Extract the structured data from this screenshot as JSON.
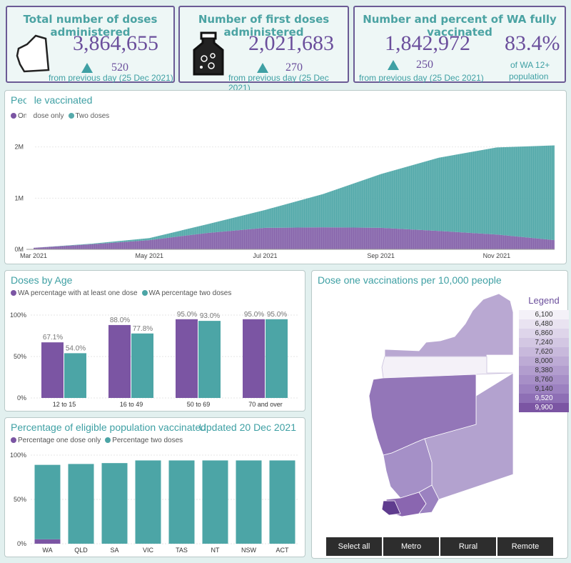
{
  "kpis": [
    {
      "title": "Total number of doses administered",
      "value": "3,864,655",
      "delta": "520",
      "note": "from previous day (25 Dec 2021)",
      "icon": "wa-map-icon"
    },
    {
      "title": "Number of first doses administered",
      "value": "2,021,683",
      "delta": "270",
      "note": "from previous day (25 Dec 2021)",
      "icon": "vaccine-vial-icon"
    },
    {
      "title": "Number and percent of WA fully vaccinated",
      "value": "1,842,972",
      "percent": "83.4%",
      "percent_note_1": "of WA 12+",
      "percent_note_2": "population",
      "delta": "250",
      "note": "from previous day (25 Dec 2021)"
    }
  ],
  "people_vaccinated": {
    "title": "People vaccinated",
    "legend": [
      "One dose only",
      "Two doses"
    ],
    "yticks": [
      "0M",
      "1M",
      "2M"
    ],
    "xticks": [
      "Mar 2021",
      "May 2021",
      "Jul 2021",
      "Sep 2021",
      "Nov 2021"
    ]
  },
  "doses_by_age": {
    "title": "Doses by Age",
    "legend": [
      "WA percentage with at least one dose",
      "WA percentage two doses"
    ],
    "yticks": [
      "0%",
      "50%",
      "100%"
    ]
  },
  "eligible": {
    "title": "Percentage of eligible population vaccinated",
    "updated": "Updated 20 Dec 2021",
    "legend": [
      "Percentage one dose only",
      "Percentage two doses"
    ],
    "yticks": [
      "0%",
      "50%",
      "100%"
    ]
  },
  "map": {
    "title": "Dose one vaccinations per 10,000 people",
    "legend_title": "Legend",
    "legend_values": [
      "6,100",
      "6,480",
      "6,860",
      "7,240",
      "7,620",
      "8,000",
      "8,380",
      "8,760",
      "9,140",
      "9,520",
      "9,900"
    ],
    "buttons": [
      "Select all",
      "Metro",
      "Rural",
      "Remote"
    ]
  },
  "colors": {
    "purple": "#7b55a3",
    "teal": "#4ca5a6",
    "accent_text": "#3fa0a4",
    "border": "#6b5b95"
  },
  "chart_data": [
    {
      "type": "area",
      "title": "People vaccinated",
      "x": [
        "Mar 2021",
        "Apr 2021",
        "May 2021",
        "Jun 2021",
        "Jul 2021",
        "Aug 2021",
        "Sep 2021",
        "Oct 2021",
        "Nov 2021",
        "Dec 2021"
      ],
      "series": [
        {
          "name": "One dose only",
          "values": [
            30000,
            100000,
            180000,
            320000,
            420000,
            430000,
            420000,
            360000,
            290000,
            180000
          ]
        },
        {
          "name": "Two doses",
          "values": [
            0,
            10000,
            40000,
            170000,
            350000,
            650000,
            1050000,
            1430000,
            1700000,
            1850000
          ]
        }
      ],
      "ylim": [
        0,
        2400000
      ]
    },
    {
      "type": "bar",
      "title": "Doses by Age",
      "categories": [
        "12 to 15",
        "16 to 49",
        "50 to 69",
        "70 and over"
      ],
      "series": [
        {
          "name": "WA percentage with at least one dose",
          "values": [
            67.1,
            88.0,
            95.0,
            95.0
          ]
        },
        {
          "name": "WA percentage two doses",
          "values": [
            54.0,
            77.8,
            93.0,
            95.0
          ]
        }
      ],
      "ylim": [
        0,
        100
      ]
    },
    {
      "type": "bar",
      "title": "Percentage of eligible population vaccinated",
      "categories": [
        "WA",
        "QLD",
        "SA",
        "VIC",
        "TAS",
        "NT",
        "NSW",
        "ACT"
      ],
      "series": [
        {
          "name": "Percentage one dose only",
          "values": [
            5,
            0,
            0,
            0,
            0,
            0,
            0,
            0
          ]
        },
        {
          "name": "Percentage two doses",
          "values": [
            84,
            90,
            91,
            94,
            94,
            94,
            94,
            94
          ]
        }
      ],
      "ylim": [
        0,
        100
      ]
    }
  ]
}
